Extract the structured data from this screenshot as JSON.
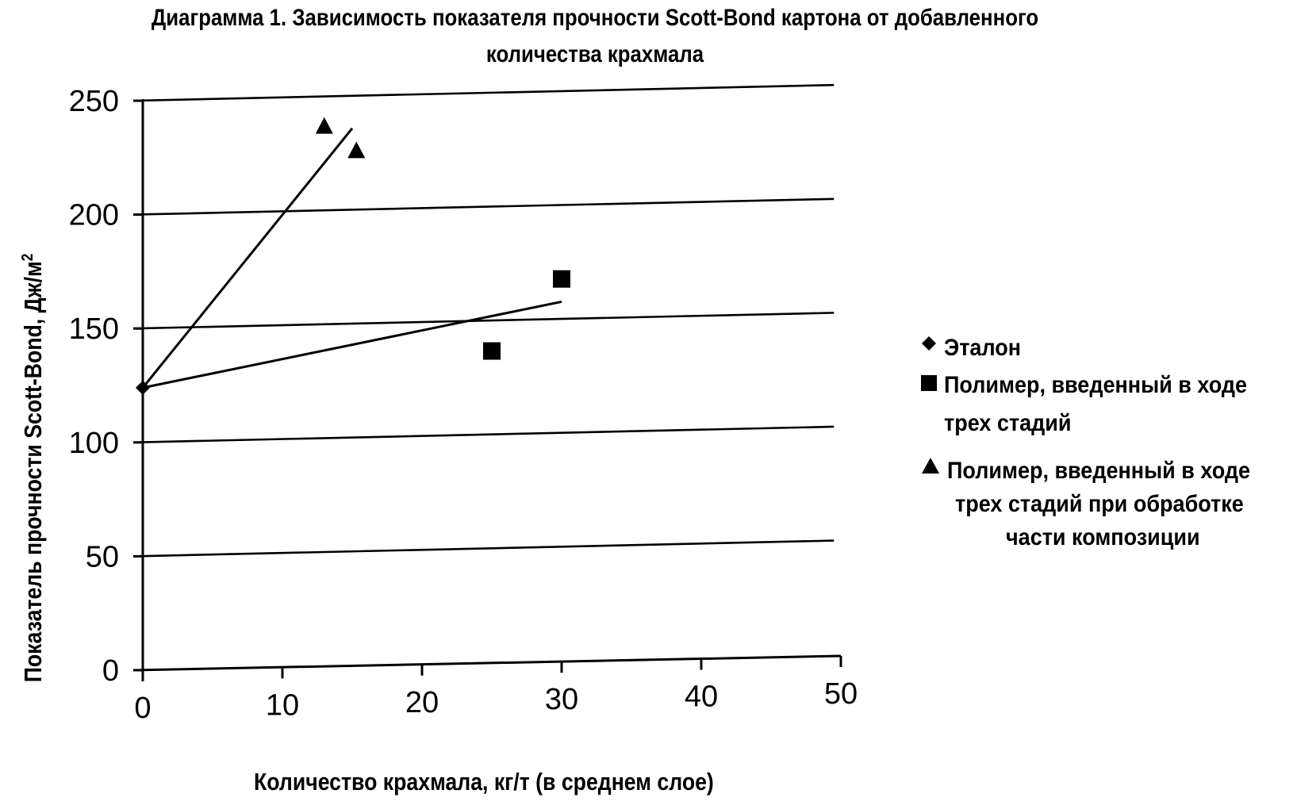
{
  "chart_data": {
    "type": "scatter",
    "title_line1": "Диаграмма 1. Зависимость показателя прочности Scott-Bond картона от добавленного",
    "title_line2": "количества крахмала",
    "xlabel": "Количество крахмала, кг/т (в среднем слое)",
    "ylabel": "Показатель прочности Scott-Bond, Дж/м",
    "ylabel_sup": "2",
    "xlim": [
      0,
      50
    ],
    "ylim": [
      0,
      250
    ],
    "x_ticks": [
      "0",
      "10",
      "20",
      "30",
      "40",
      "50"
    ],
    "y_ticks": [
      "0",
      "50",
      "100",
      "150",
      "200",
      "250"
    ],
    "grid": "horizontal",
    "legend_position": "right",
    "series": [
      {
        "name": "Эталон",
        "marker": "diamond",
        "points": [
          [
            0,
            124
          ]
        ]
      },
      {
        "name": "Полимер, введенный в ходе трех стадий",
        "marker": "square",
        "points": [
          [
            25,
            137
          ],
          [
            30,
            168
          ]
        ],
        "trendline": [
          [
            0,
            124
          ],
          [
            30,
            158
          ]
        ]
      },
      {
        "name": "Полимер, введенный в ходе трех стадий при обработке части композиции",
        "marker": "triangle",
        "points": [
          [
            13,
            237
          ],
          [
            15.3,
            226
          ]
        ],
        "trendline": [
          [
            0,
            124
          ],
          [
            15,
            236
          ]
        ]
      }
    ]
  },
  "legend": [
    {
      "lines": [
        "Эталон"
      ]
    },
    {
      "lines": [
        "Полимер, введенный в ходе",
        "трех стадий"
      ]
    },
    {
      "lines": [
        "Полимер, введенный в ходе",
        "трех стадий при обработке",
        "части композиции"
      ]
    }
  ],
  "colors": {
    "ink": "#000000",
    "background": "#ffffff"
  }
}
